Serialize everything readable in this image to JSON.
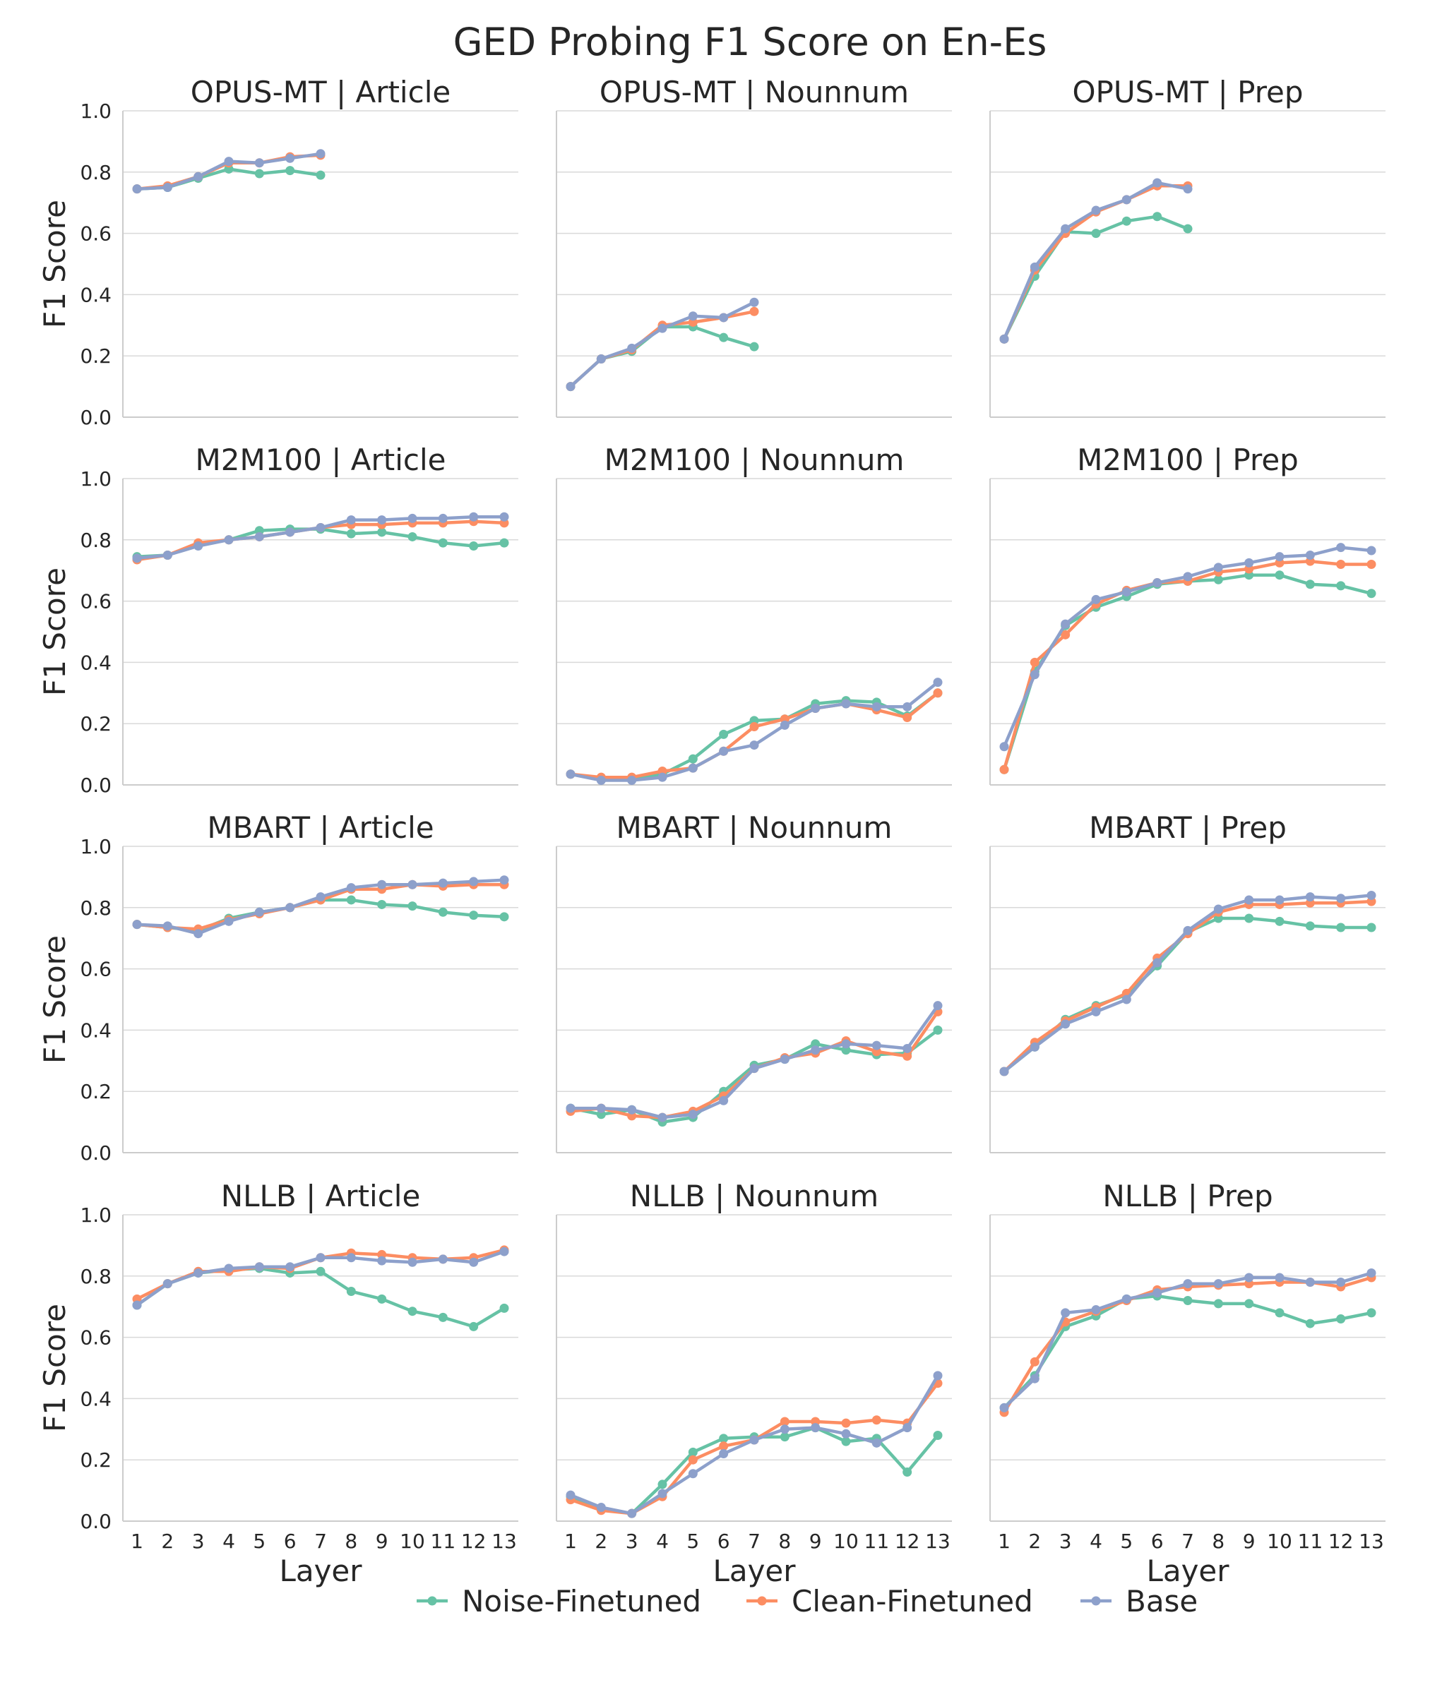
{
  "chart_data": {
    "type": "line",
    "title": "GED Probing F1 Score on En-Es",
    "ylabel": "F1 Score",
    "xlabel": "Layer",
    "ylim": [
      0.0,
      1.0
    ],
    "yticks": [
      "0.0",
      "0.2",
      "0.4",
      "0.6",
      "0.8",
      "1.0"
    ],
    "xticks": [
      "1",
      "2",
      "3",
      "4",
      "5",
      "6",
      "7",
      "8",
      "9",
      "10",
      "11",
      "12",
      "13"
    ],
    "grid": true,
    "series_names": [
      "Noise-Finetuned",
      "Clean-Finetuned",
      "Base"
    ],
    "colors": {
      "Noise-Finetuned": "#66c2a5",
      "Clean-Finetuned": "#fc8d62",
      "Base": "#8da0cb"
    },
    "panels": [
      {
        "model": "OPUS-MT",
        "category": "Article",
        "title": "OPUS-MT | Article",
        "series": [
          {
            "name": "Noise-Finetuned",
            "values": [
              0.745,
              0.75,
              0.78,
              0.81,
              0.795,
              0.805,
              0.79
            ]
          },
          {
            "name": "Clean-Finetuned",
            "values": [
              0.745,
              0.755,
              0.785,
              0.83,
              0.83,
              0.85,
              0.855
            ]
          },
          {
            "name": "Base",
            "values": [
              0.745,
              0.75,
              0.785,
              0.835,
              0.83,
              0.845,
              0.86
            ]
          }
        ]
      },
      {
        "model": "OPUS-MT",
        "category": "Nounnum",
        "title": "OPUS-MT | Nounnum",
        "series": [
          {
            "name": "Noise-Finetuned",
            "values": [
              0.1,
              0.19,
              0.215,
              0.295,
              0.295,
              0.26,
              0.23
            ]
          },
          {
            "name": "Clean-Finetuned",
            "values": [
              0.1,
              0.19,
              0.22,
              0.3,
              0.31,
              0.325,
              0.345
            ]
          },
          {
            "name": "Base",
            "values": [
              0.1,
              0.19,
              0.225,
              0.29,
              0.33,
              0.325,
              0.375
            ]
          }
        ]
      },
      {
        "model": "OPUS-MT",
        "category": "Prep",
        "title": "OPUS-MT | Prep",
        "series": [
          {
            "name": "Noise-Finetuned",
            "values": [
              0.255,
              0.46,
              0.605,
              0.6,
              0.64,
              0.655,
              0.615
            ]
          },
          {
            "name": "Clean-Finetuned",
            "values": [
              0.255,
              0.48,
              0.6,
              0.67,
              0.71,
              0.755,
              0.755
            ]
          },
          {
            "name": "Base",
            "values": [
              0.255,
              0.49,
              0.615,
              0.675,
              0.71,
              0.765,
              0.745
            ]
          }
        ]
      },
      {
        "model": "M2M100",
        "category": "Article",
        "title": "M2M100 | Article",
        "series": [
          {
            "name": "Noise-Finetuned",
            "values": [
              0.745,
              0.75,
              0.785,
              0.8,
              0.83,
              0.835,
              0.835,
              0.82,
              0.825,
              0.81,
              0.79,
              0.78,
              0.79
            ]
          },
          {
            "name": "Clean-Finetuned",
            "values": [
              0.735,
              0.75,
              0.79,
              0.8,
              0.81,
              0.825,
              0.84,
              0.85,
              0.85,
              0.855,
              0.855,
              0.86,
              0.855
            ]
          },
          {
            "name": "Base",
            "values": [
              0.74,
              0.75,
              0.78,
              0.8,
              0.81,
              0.825,
              0.84,
              0.865,
              0.865,
              0.87,
              0.87,
              0.875,
              0.875
            ]
          }
        ]
      },
      {
        "model": "M2M100",
        "category": "Nounnum",
        "title": "M2M100 | Nounnum",
        "series": [
          {
            "name": "Noise-Finetuned",
            "values": [
              0.035,
              0.02,
              0.02,
              0.035,
              0.085,
              0.165,
              0.21,
              0.215,
              0.265,
              0.275,
              0.27,
              0.225,
              0.3
            ]
          },
          {
            "name": "Clean-Finetuned",
            "values": [
              0.035,
              0.025,
              0.025,
              0.045,
              0.055,
              0.11,
              0.19,
              0.215,
              0.25,
              0.265,
              0.245,
              0.22,
              0.3
            ]
          },
          {
            "name": "Base",
            "values": [
              0.035,
              0.015,
              0.015,
              0.025,
              0.055,
              0.11,
              0.13,
              0.195,
              0.25,
              0.265,
              0.255,
              0.255,
              0.335
            ]
          }
        ]
      },
      {
        "model": "M2M100",
        "category": "Prep",
        "title": "M2M100 | Prep",
        "series": [
          {
            "name": "Noise-Finetuned",
            "values": [
              0.05,
              0.37,
              0.52,
              0.58,
              0.615,
              0.655,
              0.665,
              0.67,
              0.685,
              0.685,
              0.655,
              0.65,
              0.625
            ]
          },
          {
            "name": "Clean-Finetuned",
            "values": [
              0.05,
              0.4,
              0.49,
              0.59,
              0.635,
              0.66,
              0.665,
              0.695,
              0.705,
              0.725,
              0.73,
              0.72,
              0.72
            ]
          },
          {
            "name": "Base",
            "values": [
              0.125,
              0.36,
              0.525,
              0.605,
              0.63,
              0.66,
              0.68,
              0.71,
              0.725,
              0.745,
              0.75,
              0.775,
              0.765
            ]
          }
        ]
      },
      {
        "model": "MBART",
        "category": "Article",
        "title": "MBART | Article",
        "series": [
          {
            "name": "Noise-Finetuned",
            "values": [
              0.745,
              0.735,
              0.725,
              0.765,
              0.785,
              0.8,
              0.825,
              0.825,
              0.81,
              0.805,
              0.785,
              0.775,
              0.77
            ]
          },
          {
            "name": "Clean-Finetuned",
            "values": [
              0.745,
              0.735,
              0.73,
              0.76,
              0.78,
              0.8,
              0.825,
              0.86,
              0.86,
              0.875,
              0.87,
              0.875,
              0.875
            ]
          },
          {
            "name": "Base",
            "values": [
              0.745,
              0.74,
              0.715,
              0.755,
              0.785,
              0.8,
              0.835,
              0.865,
              0.875,
              0.875,
              0.88,
              0.885,
              0.89
            ]
          }
        ]
      },
      {
        "model": "MBART",
        "category": "Nounnum",
        "title": "MBART | Nounnum",
        "series": [
          {
            "name": "Noise-Finetuned",
            "values": [
              0.145,
              0.125,
              0.14,
              0.1,
              0.115,
              0.2,
              0.285,
              0.305,
              0.355,
              0.335,
              0.32,
              0.325,
              0.4
            ]
          },
          {
            "name": "Clean-Finetuned",
            "values": [
              0.135,
              0.145,
              0.12,
              0.115,
              0.135,
              0.185,
              0.275,
              0.31,
              0.325,
              0.365,
              0.33,
              0.315,
              0.46
            ]
          },
          {
            "name": "Base",
            "values": [
              0.145,
              0.145,
              0.14,
              0.115,
              0.125,
              0.17,
              0.275,
              0.305,
              0.335,
              0.355,
              0.35,
              0.34,
              0.48
            ]
          }
        ]
      },
      {
        "model": "MBART",
        "category": "Prep",
        "title": "MBART | Prep",
        "series": [
          {
            "name": "Noise-Finetuned",
            "values": [
              0.265,
              0.345,
              0.435,
              0.48,
              0.515,
              0.61,
              0.72,
              0.765,
              0.765,
              0.755,
              0.74,
              0.735,
              0.735
            ]
          },
          {
            "name": "Clean-Finetuned",
            "values": [
              0.265,
              0.36,
              0.43,
              0.475,
              0.52,
              0.635,
              0.715,
              0.785,
              0.81,
              0.81,
              0.815,
              0.815,
              0.82
            ]
          },
          {
            "name": "Base",
            "values": [
              0.265,
              0.345,
              0.42,
              0.46,
              0.5,
              0.62,
              0.725,
              0.795,
              0.825,
              0.825,
              0.835,
              0.83,
              0.84
            ]
          }
        ]
      },
      {
        "model": "NLLB",
        "category": "Article",
        "title": "NLLB | Article",
        "series": [
          {
            "name": "Noise-Finetuned",
            "values": [
              0.705,
              0.775,
              0.81,
              0.82,
              0.825,
              0.81,
              0.815,
              0.75,
              0.725,
              0.685,
              0.665,
              0.635,
              0.695
            ]
          },
          {
            "name": "Clean-Finetuned",
            "values": [
              0.725,
              0.775,
              0.815,
              0.815,
              0.83,
              0.825,
              0.86,
              0.875,
              0.87,
              0.86,
              0.855,
              0.86,
              0.885
            ]
          },
          {
            "name": "Base",
            "values": [
              0.705,
              0.775,
              0.81,
              0.825,
              0.83,
              0.83,
              0.86,
              0.86,
              0.85,
              0.845,
              0.855,
              0.845,
              0.88
            ]
          }
        ]
      },
      {
        "model": "NLLB",
        "category": "Nounnum",
        "title": "NLLB | Nounnum",
        "series": [
          {
            "name": "Noise-Finetuned",
            "values": [
              0.08,
              0.04,
              0.025,
              0.12,
              0.225,
              0.27,
              0.275,
              0.275,
              0.305,
              0.26,
              0.27,
              0.16,
              0.28
            ]
          },
          {
            "name": "Clean-Finetuned",
            "values": [
              0.07,
              0.035,
              0.025,
              0.08,
              0.2,
              0.245,
              0.265,
              0.325,
              0.325,
              0.32,
              0.33,
              0.32,
              0.45
            ]
          },
          {
            "name": "Base",
            "values": [
              0.085,
              0.045,
              0.025,
              0.09,
              0.155,
              0.22,
              0.265,
              0.3,
              0.305,
              0.285,
              0.255,
              0.305,
              0.475
            ]
          }
        ]
      },
      {
        "model": "NLLB",
        "category": "Prep",
        "title": "NLLB | Prep",
        "series": [
          {
            "name": "Noise-Finetuned",
            "values": [
              0.37,
              0.475,
              0.635,
              0.67,
              0.725,
              0.735,
              0.72,
              0.71,
              0.71,
              0.68,
              0.645,
              0.66,
              0.68
            ]
          },
          {
            "name": "Clean-Finetuned",
            "values": [
              0.355,
              0.52,
              0.65,
              0.685,
              0.72,
              0.755,
              0.765,
              0.77,
              0.775,
              0.78,
              0.78,
              0.765,
              0.795
            ]
          },
          {
            "name": "Base",
            "values": [
              0.37,
              0.465,
              0.68,
              0.69,
              0.725,
              0.745,
              0.775,
              0.775,
              0.795,
              0.795,
              0.78,
              0.78,
              0.81
            ]
          }
        ]
      }
    ]
  }
}
